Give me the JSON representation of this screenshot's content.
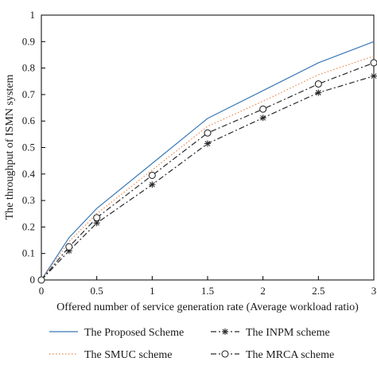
{
  "chart_data": {
    "type": "line",
    "title": "",
    "xlabel": "Offered number of service generation rate (Average workload ratio)",
    "ylabel": "The throughput of ISMN system",
    "xlim": [
      0,
      3
    ],
    "ylim": [
      0,
      1
    ],
    "x_ticks": [
      "0",
      "0.5",
      "1",
      "1.5",
      "2",
      "2.5",
      "3"
    ],
    "y_ticks": [
      "0",
      "0.1",
      "0.2",
      "0.3",
      "0.4",
      "0.5",
      "0.6",
      "0.7",
      "0.8",
      "0.9",
      "1"
    ],
    "grid": false,
    "legend_position": "bottom",
    "x": [
      0,
      0.25,
      0.5,
      1,
      1.5,
      2,
      2.5,
      3
    ],
    "series": [
      {
        "name": "The Proposed Scheme",
        "color": "#3b78b6",
        "dash": "solid",
        "marker": "none",
        "values": [
          0,
          0.16,
          0.27,
          0.44,
          0.61,
          0.715,
          0.82,
          0.9
        ]
      },
      {
        "name": "The SMUC scheme",
        "color": "#e8874d",
        "dash": "dotted",
        "marker": "none",
        "values": [
          0,
          0.145,
          0.25,
          0.415,
          0.58,
          0.675,
          0.775,
          0.845
        ]
      },
      {
        "name": "The INPM scheme",
        "color": "#2a2a2a",
        "dash": "dashdot",
        "marker": "star",
        "values": [
          0,
          0.11,
          0.215,
          0.36,
          0.515,
          0.612,
          0.707,
          0.77
        ]
      },
      {
        "name": "The MRCA scheme",
        "color": "#2a2a2a",
        "dash": "dashdot",
        "marker": "circle",
        "values": [
          0,
          0.125,
          0.235,
          0.395,
          0.555,
          0.645,
          0.74,
          0.82
        ]
      }
    ]
  }
}
